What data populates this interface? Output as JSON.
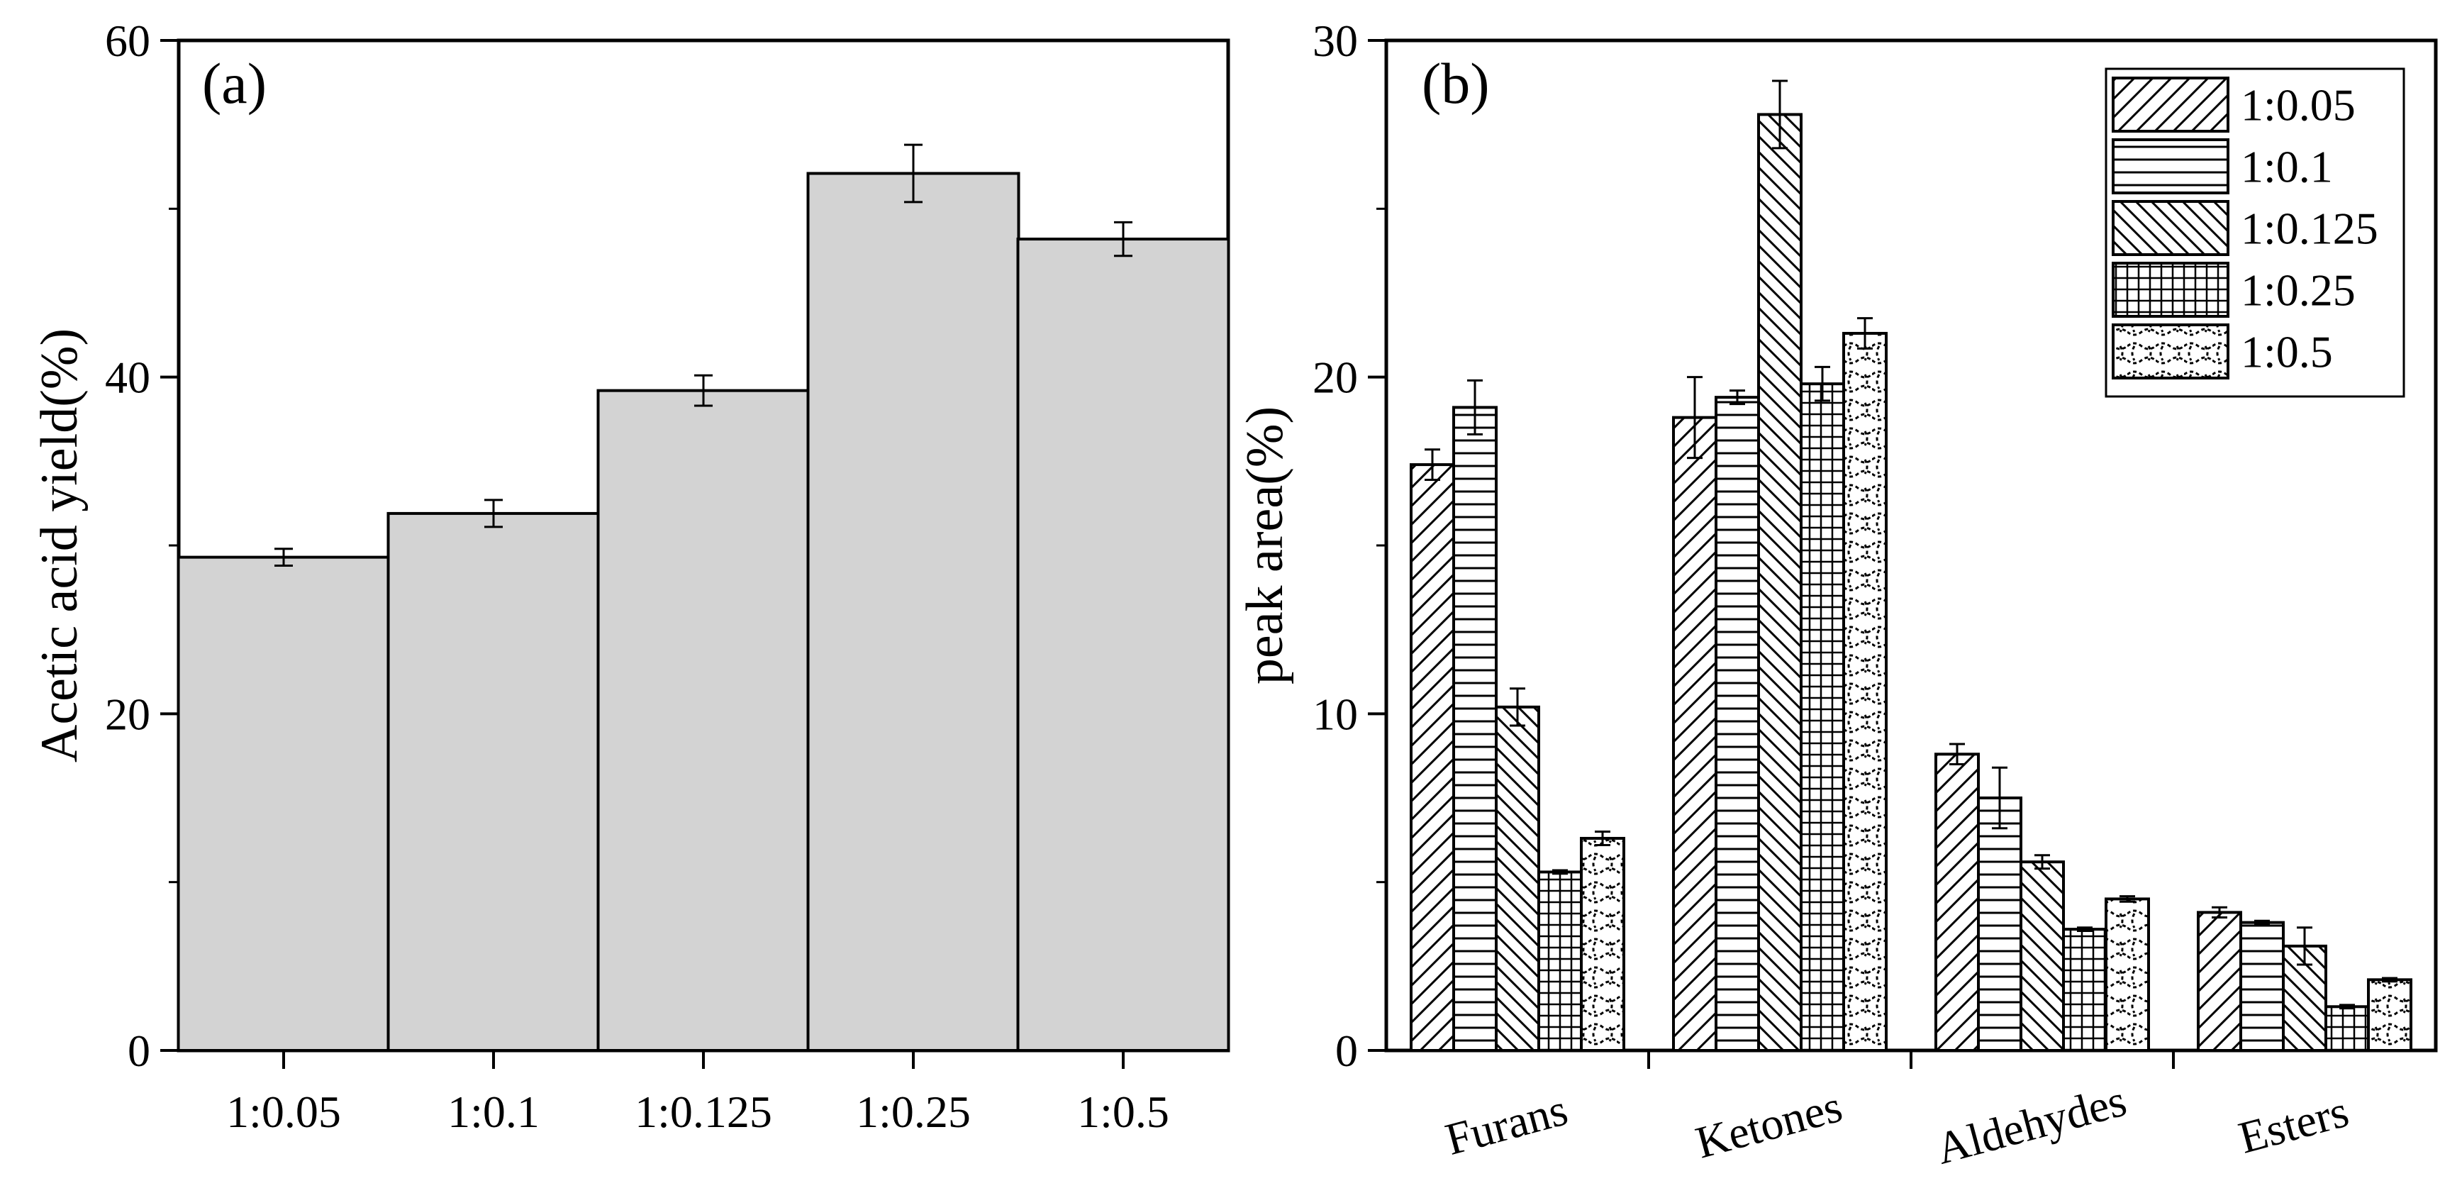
{
  "chart_data": [
    {
      "panel": "(a)",
      "type": "bar",
      "categories": [
        "1:0.05",
        "1:0.1",
        "1:0.125",
        "1:0.25",
        "1:0.5"
      ],
      "values": [
        29.3,
        31.9,
        39.2,
        52.1,
        48.2
      ],
      "errors": [
        0.5,
        0.8,
        0.9,
        1.7,
        1.0
      ],
      "ylabel": "Acetic acid yield(%)",
      "xlabel": "",
      "ylim": [
        0,
        60
      ],
      "yticks": [
        0,
        20,
        40,
        60
      ],
      "bar_color": "#d3d3d3"
    },
    {
      "panel": "(b)",
      "type": "bar",
      "categories": [
        "Furans",
        "Ketones",
        "Aldehydes",
        "Esters"
      ],
      "series": [
        {
          "name": "1:0.05",
          "pattern": "diag-up",
          "values": [
            17.4,
            18.8,
            8.8,
            4.1
          ],
          "errors": [
            0.45,
            1.2,
            0.3,
            0.15
          ]
        },
        {
          "name": "1:0.1",
          "pattern": "horizontal",
          "values": [
            19.1,
            19.4,
            7.5,
            3.8
          ],
          "errors": [
            0.8,
            0.2,
            0.9,
            0.05
          ]
        },
        {
          "name": "1:0.125",
          "pattern": "diag-down",
          "values": [
            10.2,
            27.8,
            5.6,
            3.1
          ],
          "errors": [
            0.55,
            1.0,
            0.2,
            0.55
          ]
        },
        {
          "name": "1:0.25",
          "pattern": "grid",
          "values": [
            5.3,
            19.8,
            3.6,
            1.3
          ],
          "errors": [
            0.05,
            0.5,
            0.05,
            0.05
          ]
        },
        {
          "name": "1:0.5",
          "pattern": "wave",
          "values": [
            6.3,
            21.3,
            4.5,
            2.1
          ],
          "errors": [
            0.2,
            0.45,
            0.08,
            0.05
          ]
        }
      ],
      "ylabel": "peak area(%)",
      "xlabel": "",
      "ylim": [
        0,
        30
      ],
      "yticks": [
        0,
        10,
        20,
        30
      ],
      "legend_position": "top-right"
    }
  ]
}
